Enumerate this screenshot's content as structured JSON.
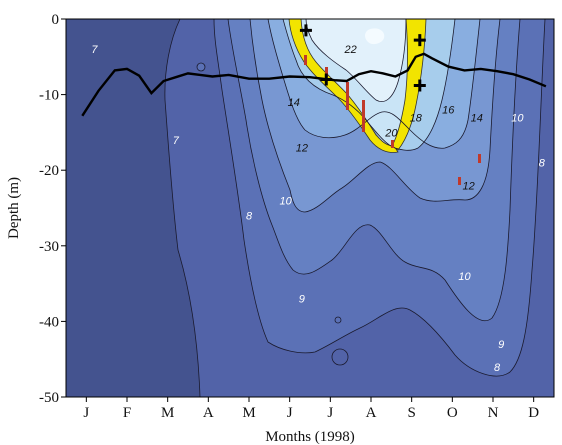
{
  "chart_data": {
    "type": "contour",
    "xlabel": "Months (1998)",
    "ylabel": "Depth (m)",
    "x_categories": [
      "J",
      "F",
      "M",
      "A",
      "M",
      "J",
      "J",
      "A",
      "S",
      "O",
      "N",
      "D"
    ],
    "y_ticks": [
      0,
      -10,
      -20,
      -30,
      -40,
      -50
    ],
    "ylim": [
      -50,
      0
    ],
    "xlim": [
      0,
      12
    ],
    "contour_labels": [
      {
        "text": "7",
        "x": 0.7,
        "y": -4
      },
      {
        "text": "7",
        "x": 2.7,
        "y": -16
      },
      {
        "text": "8",
        "x": 4.5,
        "y": -26
      },
      {
        "text": "8",
        "x": 11.7,
        "y": -19
      },
      {
        "text": "8",
        "x": 10.6,
        "y": -46
      },
      {
        "text": "9",
        "x": 5.8,
        "y": -37
      },
      {
        "text": "9",
        "x": 10.7,
        "y": -43
      },
      {
        "text": "10",
        "x": 5.4,
        "y": -24
      },
      {
        "text": "10",
        "x": 9.8,
        "y": -34
      },
      {
        "text": "10",
        "x": 11.1,
        "y": -13
      },
      {
        "text": "12",
        "x": 5.8,
        "y": -17
      },
      {
        "text": "12",
        "x": 9.9,
        "y": -22
      },
      {
        "text": "14",
        "x": 5.6,
        "y": -11
      },
      {
        "text": "14",
        "x": 10.1,
        "y": -13
      },
      {
        "text": "16",
        "x": 9.4,
        "y": -12
      },
      {
        "text": "18",
        "x": 8.6,
        "y": -13
      },
      {
        "text": "20",
        "x": 8.0,
        "y": -15
      },
      {
        "text": "22",
        "x": 7.0,
        "y": -4
      }
    ],
    "mixed_layer_depth": {
      "x": [
        0.4,
        0.8,
        1.2,
        1.5,
        1.8,
        2.1,
        2.4,
        2.7,
        3.0,
        3.3,
        3.6,
        4.0,
        4.5,
        5.0,
        5.5,
        6.0,
        6.3,
        6.6,
        6.9,
        7.2,
        7.5,
        7.8,
        8.1,
        8.4,
        8.6,
        8.8,
        9.0,
        9.4,
        9.8,
        10.2,
        10.6,
        11.0,
        11.4,
        11.8
      ],
      "y": [
        -12.8,
        -9.5,
        -6.8,
        -6.6,
        -7.5,
        -9.8,
        -8.2,
        -7.7,
        -7.2,
        -7.4,
        -7.6,
        -7.4,
        -7.9,
        -7.9,
        -7.6,
        -7.7,
        -7.9,
        -8.1,
        -8.2,
        -7.3,
        -6.9,
        -7.2,
        -7.6,
        -6.8,
        -5.0,
        -4.6,
        -5.2,
        -6.3,
        -6.8,
        -6.6,
        -6.9,
        -7.3,
        -8.0,
        -8.9
      ]
    },
    "plus_markers": [
      {
        "x": 5.9,
        "y": -1.5
      },
      {
        "x": 6.4,
        "y": -8.0
      },
      {
        "x": 8.7,
        "y": -2.8
      },
      {
        "x": 8.7,
        "y": -8.8
      }
    ],
    "colors": {
      "band_7": "#44538f",
      "band_8": "#5263a8",
      "band_9": "#5b71b6",
      "band_10": "#6580c2",
      "band_12": "#7897d2",
      "band_14": "#89aee0",
      "band_16": "#a7cdec",
      "band_18": "#c9e4f6",
      "band_22": "#e2f1fb",
      "highlight": "#f2e400",
      "mld_line": "#000000",
      "red_marks": "#c0392b"
    }
  }
}
